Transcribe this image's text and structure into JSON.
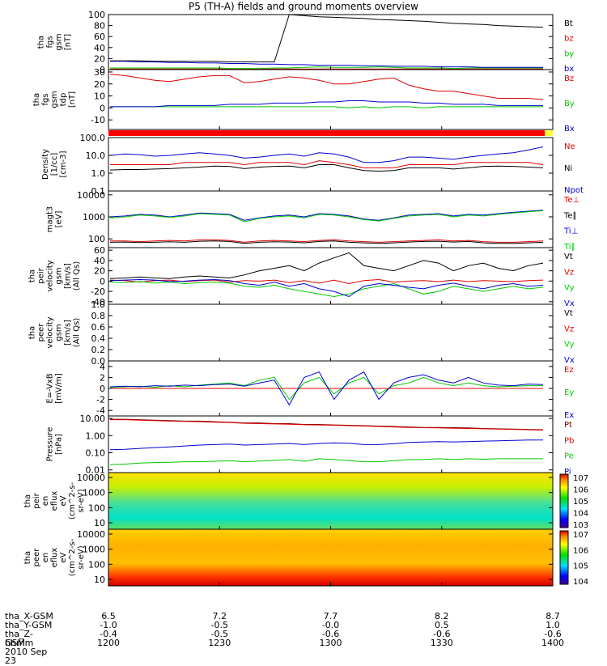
{
  "title": "P5 (TH-A) fields and ground moments overview",
  "colors": {
    "black": "#000000",
    "red": "#e00000",
    "green": "#00c800",
    "blue": "#0000d0",
    "darkred": "#7a0000"
  },
  "chart_data": [
    {
      "type": "line",
      "ylabel": [
        "tha",
        "fgs",
        "gsm",
        "[nT]"
      ],
      "ylim": [
        0,
        100
      ],
      "yticks": [
        0,
        20,
        40,
        60,
        80,
        100
      ],
      "series": [
        {
          "name": "Bt",
          "color": "black",
          "values": [
            16,
            16,
            16,
            15,
            15,
            15,
            15,
            15,
            14,
            14,
            14,
            14,
            100,
            98,
            96,
            95,
            94,
            93,
            91,
            90,
            89,
            88,
            86,
            84,
            83,
            82,
            80,
            79,
            78,
            77
          ]
        },
        {
          "name": "bz",
          "color": "red",
          "values": [
            1,
            1,
            1,
            1,
            1,
            1,
            1,
            1,
            1,
            1,
            1,
            1,
            1,
            1,
            1,
            1,
            1,
            1,
            1,
            1,
            1,
            1,
            1,
            1,
            1,
            1,
            1,
            1,
            1,
            1
          ]
        },
        {
          "name": "by",
          "color": "green",
          "values": [
            3,
            3,
            3,
            3,
            3,
            3,
            3,
            3,
            2,
            2,
            2,
            3,
            3,
            4,
            5,
            4,
            4,
            4,
            5,
            4,
            3,
            3,
            3,
            2,
            3,
            3,
            3,
            3,
            3,
            3
          ]
        },
        {
          "name": "bx",
          "color": "blue",
          "values": [
            15,
            15,
            14,
            14,
            13,
            13,
            12,
            12,
            11,
            11,
            10,
            10,
            9,
            9,
            8,
            8,
            8,
            7,
            7,
            6,
            6,
            6,
            5,
            5,
            5,
            4,
            4,
            4,
            4,
            4
          ]
        }
      ]
    },
    {
      "type": "line",
      "ylabel": [
        "tha",
        "fgs",
        "gsm",
        "tdp",
        "[nT]"
      ],
      "ylim": [
        -18,
        32
      ],
      "yticks": [
        -10,
        0,
        10,
        20,
        30
      ],
      "series": [
        {
          "name": "Bz",
          "color": "red",
          "values": [
            28,
            27,
            25,
            23,
            22,
            24,
            26,
            27,
            27,
            21,
            22,
            24,
            26,
            25,
            23,
            20,
            20,
            22,
            24,
            25,
            19,
            16,
            14,
            14,
            12,
            10,
            8,
            8,
            8,
            7
          ]
        },
        {
          "name": "By",
          "color": "green",
          "values": [
            1,
            1,
            1,
            1,
            1,
            1,
            1,
            1,
            1,
            1,
            1,
            1,
            1,
            1,
            1,
            1,
            0,
            1,
            0,
            1,
            1,
            0,
            1,
            1,
            1,
            1,
            1,
            1,
            1,
            1
          ]
        },
        {
          "name": "Bx",
          "color": "blue",
          "values": [
            1,
            1,
            1,
            1,
            2,
            2,
            2,
            2,
            3,
            3,
            3,
            4,
            4,
            4,
            5,
            5,
            6,
            6,
            5,
            5,
            5,
            4,
            4,
            3,
            3,
            3,
            2,
            2,
            2,
            2
          ]
        }
      ]
    },
    {
      "type": "line",
      "scale": "log",
      "ylabel": [
        "Density",
        "[1/cc]",
        "[cm-3]"
      ],
      "ylim": [
        0.1,
        100
      ],
      "yticks": [
        "0.1",
        "1.0",
        "10.0",
        "100.0"
      ],
      "series": [
        {
          "name": "Ne",
          "color": "red",
          "values": [
            3,
            3,
            3,
            3,
            3,
            4,
            4,
            4,
            4,
            3,
            4,
            4,
            4,
            3,
            5,
            4,
            3,
            2,
            2,
            2,
            3,
            3,
            3,
            3,
            4,
            4,
            4,
            4,
            4,
            3
          ]
        },
        {
          "name": "Ni",
          "color": "black",
          "values": [
            1.5,
            1.6,
            1.6,
            1.7,
            1.8,
            2,
            2.2,
            2.5,
            2.4,
            1.8,
            2.2,
            2.4,
            2.5,
            2,
            3,
            3,
            2,
            1.4,
            1.3,
            1.4,
            2,
            2,
            2,
            1.7,
            2,
            2.4,
            2.5,
            2.4,
            2.2,
            2
          ]
        },
        {
          "name": "Npot",
          "color": "blue",
          "values": [
            10,
            12,
            11,
            9,
            10,
            12,
            14,
            12,
            10,
            7,
            8,
            10,
            12,
            9,
            14,
            12,
            8,
            4,
            4,
            5,
            8,
            8,
            7,
            6,
            8,
            10,
            12,
            14,
            20,
            30
          ]
        }
      ]
    },
    {
      "type": "line",
      "scale": "log",
      "ylabel": [
        "magt3",
        "[eV]"
      ],
      "ylim": [
        40,
        15000
      ],
      "yticks": [
        "100",
        "1000",
        "10000"
      ],
      "series": [
        {
          "name": "Te⊥",
          "color": "red",
          "values": [
            80,
            80,
            75,
            80,
            85,
            80,
            90,
            90,
            85,
            70,
            80,
            85,
            80,
            75,
            85,
            90,
            80,
            75,
            70,
            75,
            80,
            85,
            90,
            80,
            85,
            75,
            70,
            70,
            75,
            80
          ]
        },
        {
          "name": "Te∥",
          "color": "black",
          "values": [
            70,
            72,
            68,
            70,
            74,
            70,
            78,
            80,
            76,
            62,
            70,
            74,
            72,
            66,
            76,
            80,
            70,
            66,
            62,
            66,
            72,
            76,
            78,
            72,
            76,
            66,
            62,
            62,
            66,
            70
          ]
        },
        {
          "name": "Ti⊥",
          "color": "blue",
          "values": [
            1000,
            1100,
            1300,
            1200,
            1000,
            1200,
            1500,
            1400,
            1300,
            700,
            900,
            1100,
            1200,
            1000,
            1400,
            1300,
            1100,
            800,
            700,
            900,
            1200,
            1300,
            1400,
            1100,
            1300,
            1200,
            1400,
            1600,
            1800,
            2000
          ]
        },
        {
          "name": "Ti∥",
          "color": "green",
          "values": [
            900,
            1000,
            1200,
            1100,
            950,
            1100,
            1400,
            1300,
            1200,
            600,
            850,
            1000,
            1100,
            900,
            1300,
            1200,
            1000,
            750,
            650,
            850,
            1100,
            1200,
            1300,
            1000,
            1200,
            1100,
            1300,
            1500,
            1700,
            1900
          ]
        }
      ]
    },
    {
      "type": "line",
      "ylabel": [
        "tha",
        "peir",
        "velocity",
        "gsm",
        "[km/s]",
        "(All Qs)"
      ],
      "ylim": [
        -45,
        65
      ],
      "yticks": [
        -40,
        -20,
        0,
        20,
        40,
        60
      ],
      "series": [
        {
          "name": "Vt",
          "color": "black",
          "values": [
            5,
            6,
            8,
            6,
            5,
            8,
            10,
            8,
            6,
            12,
            20,
            25,
            30,
            20,
            35,
            45,
            55,
            30,
            25,
            20,
            30,
            40,
            35,
            20,
            30,
            35,
            25,
            20,
            30,
            35
          ]
        },
        {
          "name": "Vz",
          "color": "red",
          "values": [
            2,
            1,
            -2,
            1,
            2,
            -1,
            1,
            2,
            -2,
            1,
            0,
            2,
            -3,
            1,
            -4,
            2,
            -5,
            1,
            3,
            -2,
            0,
            1,
            -1,
            2,
            -1,
            1,
            0,
            -1,
            1,
            2
          ]
        },
        {
          "name": "Vy",
          "color": "green",
          "values": [
            -2,
            -3,
            -1,
            -4,
            -2,
            -5,
            -3,
            -2,
            -4,
            -10,
            -12,
            -8,
            -15,
            -20,
            -25,
            -30,
            -25,
            -15,
            -10,
            -5,
            -15,
            -25,
            -20,
            -10,
            -15,
            -20,
            -15,
            -10,
            -15,
            -12
          ]
        },
        {
          "name": "Vx",
          "color": "blue",
          "values": [
            1,
            2,
            3,
            2,
            -1,
            0,
            2,
            3,
            1,
            -5,
            -8,
            -2,
            -10,
            -5,
            -15,
            -20,
            -30,
            -10,
            -5,
            -8,
            -12,
            -15,
            -8,
            -4,
            -10,
            -15,
            -8,
            -5,
            -10,
            -8
          ]
        }
      ]
    },
    {
      "type": "line",
      "ylabel": [
        "tha",
        "peer",
        "velocity",
        "gsm",
        "[km/s]",
        "(All Qs)"
      ],
      "ylim": [
        0,
        1
      ],
      "yticks": [
        "0.0",
        "0.2",
        "0.4",
        "0.6",
        "0.8",
        "1.0"
      ],
      "series": [
        {
          "name": "Vt",
          "color": "black",
          "values": []
        },
        {
          "name": "Vz",
          "color": "red",
          "values": []
        },
        {
          "name": "Vy",
          "color": "green",
          "values": []
        },
        {
          "name": "Vx",
          "color": "blue",
          "values": []
        }
      ]
    },
    {
      "type": "line",
      "ylabel": [
        "E=-VxB",
        "[mV/m]"
      ],
      "ylim": [
        -5,
        5
      ],
      "yticks": [
        -4,
        -2,
        0,
        2,
        4
      ],
      "series": [
        {
          "name": "Ez",
          "color": "red",
          "values": [
            0,
            0,
            0,
            0,
            0,
            0,
            0,
            0,
            0,
            0,
            0,
            0,
            0,
            0,
            0,
            0,
            0,
            0,
            0,
            0,
            0,
            0,
            0,
            0,
            0,
            0,
            0,
            0,
            0,
            0
          ]
        },
        {
          "name": "Ey",
          "color": "green",
          "values": [
            0.2,
            0.3,
            0.4,
            0.2,
            0.5,
            0.3,
            0.6,
            0.8,
            1,
            0.5,
            1.5,
            2,
            -2,
            1,
            2,
            -1,
            1,
            2,
            -1,
            0.5,
            1,
            2,
            1,
            0.5,
            1,
            0.5,
            0.3,
            0.4,
            0.5,
            0.5
          ]
        },
        {
          "name": "Ex",
          "color": "blue",
          "values": [
            0.3,
            0.4,
            0.3,
            0.5,
            0.4,
            0.6,
            0.5,
            0.7,
            0.8,
            0.4,
            1,
            1.5,
            -3,
            2,
            3,
            -2,
            1.5,
            3,
            -2,
            1,
            2,
            2.5,
            1.5,
            1,
            2,
            1,
            0.6,
            0.5,
            0.8,
            0.7
          ]
        }
      ]
    },
    {
      "type": "line",
      "scale": "log",
      "ylabel": [
        "Pressure",
        "[nPa]"
      ],
      "ylim": [
        0.007,
        14
      ],
      "yticks": [
        "0.01",
        "0.10",
        "1.00",
        "10.00"
      ],
      "series": [
        {
          "name": "Pt",
          "color": "darkred",
          "values": [
            9,
            9,
            8.5,
            8,
            7.5,
            7,
            7,
            6.5,
            6,
            5.5,
            5.5,
            5,
            5,
            4.5,
            4.5,
            4.2,
            4,
            3.8,
            3.6,
            3.4,
            3.2,
            3,
            3,
            2.9,
            2.8,
            2.6,
            2.5,
            2.4,
            2.3,
            2.2
          ]
        },
        {
          "name": "Pb",
          "color": "red",
          "values": [
            8.5,
            8.5,
            8,
            7.5,
            7,
            6.8,
            6.5,
            6,
            5.8,
            5.2,
            5,
            4.8,
            4.6,
            4.3,
            4.2,
            4,
            3.8,
            3.6,
            3.4,
            3.2,
            3,
            2.9,
            2.8,
            2.7,
            2.6,
            2.5,
            2.4,
            2.3,
            2.2,
            2.1
          ]
        },
        {
          "name": "Pe",
          "color": "green",
          "values": [
            0.02,
            0.022,
            0.025,
            0.027,
            0.028,
            0.03,
            0.03,
            0.032,
            0.035,
            0.03,
            0.033,
            0.036,
            0.04,
            0.032,
            0.045,
            0.04,
            0.035,
            0.03,
            0.03,
            0.035,
            0.04,
            0.04,
            0.045,
            0.04,
            0.045,
            0.042,
            0.045,
            0.045,
            0.045,
            0.045
          ]
        },
        {
          "name": "Pi",
          "color": "blue",
          "values": [
            0.15,
            0.16,
            0.18,
            0.2,
            0.22,
            0.25,
            0.28,
            0.3,
            0.32,
            0.28,
            0.3,
            0.32,
            0.35,
            0.3,
            0.35,
            0.38,
            0.36,
            0.3,
            0.3,
            0.34,
            0.4,
            0.42,
            0.45,
            0.43,
            0.45,
            0.48,
            0.5,
            0.52,
            0.55,
            0.55
          ]
        }
      ]
    },
    {
      "type": "heatmap",
      "scale": "log",
      "ylabel": [
        "tha",
        "peir",
        "en",
        "eflux",
        "eV",
        "(cm^2-s-",
        "sr-eV)"
      ],
      "yticks": [
        "10",
        "100",
        "1000",
        "10000"
      ],
      "colorbar_ticks": [
        "10^3",
        "10^4",
        "10^5",
        "10^6",
        "10^7"
      ]
    },
    {
      "type": "heatmap",
      "scale": "log",
      "ylabel": [
        "tha",
        "peer",
        "en",
        "eflux",
        "eV",
        "(cm^2-s-",
        "sr-eV)"
      ],
      "yticks": [
        "10",
        "100",
        "1000",
        "10000"
      ],
      "colorbar_ticks": [
        "10^4",
        "10^5",
        "10^6",
        "10^7"
      ]
    }
  ],
  "x_axis": {
    "ticks": [
      "1200",
      "1230",
      "1300",
      "1330",
      "1400"
    ],
    "rows": [
      {
        "label": "tha_X-GSM",
        "values": [
          "6.5",
          "7.2",
          "7.7",
          "8.2",
          "8.7"
        ]
      },
      {
        "label": "tha_Y-GSM",
        "values": [
          "-1.0",
          "-0.5",
          "-0.0",
          "0.5",
          "1.0"
        ]
      },
      {
        "label": "tha_Z-GSM",
        "values": [
          "-0.4",
          "-0.5",
          "-0.6",
          "-0.6",
          "-0.6"
        ]
      },
      {
        "label": "hhmm",
        "values": [
          "1200",
          "1230",
          "1300",
          "1330",
          "1400"
        ]
      }
    ],
    "date": "2010 Sep 23"
  }
}
